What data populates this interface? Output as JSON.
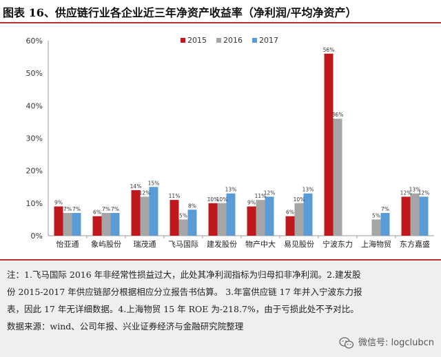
{
  "title": "图表 16、供应链行业各企业近三年净资产收益率（净利润/平均净资产）",
  "chart_data": {
    "type": "bar",
    "categories": [
      "怡亚通",
      "象屿股份",
      "瑞茂通",
      "飞马国际",
      "建发股份",
      "物产中大",
      "易见股份",
      "宁波东力",
      "上海物贸",
      "东方嘉盛"
    ],
    "series": [
      {
        "name": "2015",
        "color": "#c0181f",
        "values": [
          9,
          6,
          14,
          11,
          10,
          9,
          6,
          56,
          null,
          12
        ],
        "labels": [
          "9%",
          "6%",
          "14%",
          "11%",
          "10%",
          "9%",
          "6%",
          "56%",
          "",
          "12%"
        ]
      },
      {
        "name": "2016",
        "color": "#a6a6a6",
        "values": [
          7,
          7,
          12,
          5,
          10,
          11,
          10,
          36,
          5,
          13
        ],
        "labels": [
          "7%",
          "7%",
          "12%",
          "5%",
          "10%",
          "11%",
          "10%",
          "36%",
          "5%",
          "13%"
        ]
      },
      {
        "name": "2017",
        "color": "#5b9bd5",
        "values": [
          7,
          7,
          15,
          8,
          13,
          12,
          13,
          null,
          7,
          12
        ],
        "labels": [
          "7%",
          "7%",
          "15%",
          "8%",
          "13%",
          "12%",
          "13%",
          "",
          "7%",
          "12%"
        ]
      }
    ],
    "yticks": [
      "0%",
      "10%",
      "20%",
      "30%",
      "40%",
      "50%",
      "60%"
    ],
    "ylim": [
      0,
      60
    ],
    "legend": "top-center"
  },
  "notes": {
    "line1": "注：1.飞马国际 2016 年非经常性损益过大，此处其净利润指标为归母扣非净利润。2.建发股",
    "line2": "份 2015-2017 年供应链部分根据相应分立报告书估算。 3.年富供应链 17 年并入宁波东力报",
    "line3": "表，因此 17 年无详细数据。4.上海物贸 15 年 ROE 为-218.7%，由于亏损此处不予对比。",
    "source": "数据来源：wind、公司年报、兴业证券经济与金融研究院整理"
  },
  "watermark": {
    "text": "微信号: logclubcn",
    "icon": "wechat-icon"
  }
}
